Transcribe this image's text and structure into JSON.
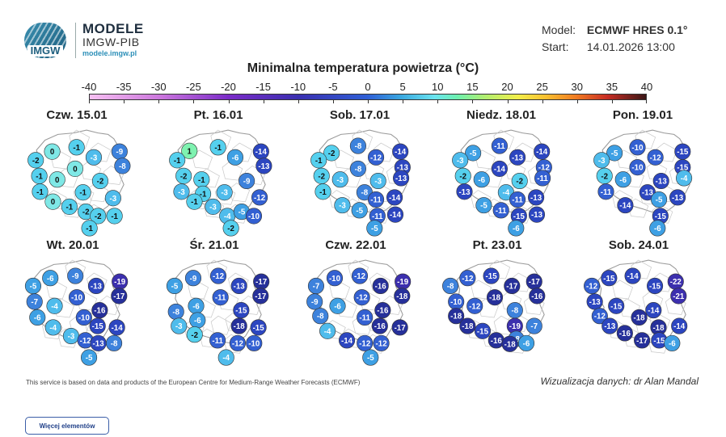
{
  "logo": {
    "badge": "IMGW",
    "title": "MODELE",
    "subtitle": "IMGW-PIB",
    "url": "modele.imgw.pl"
  },
  "meta": {
    "model_label": "Model:",
    "model_value": "ECMWF HRES 0.1°",
    "start_label": "Start:",
    "start_value": "14.01.2026 13:00"
  },
  "title": "Minimalna temperatura powietrza (°C)",
  "scale": {
    "labels": [
      "-40",
      "-35",
      "-30",
      "-25",
      "-20",
      "-15",
      "-10",
      "-5",
      "0",
      "5",
      "10",
      "15",
      "20",
      "25",
      "30",
      "35",
      "40"
    ],
    "min": -40,
    "max": 40
  },
  "panels": [
    {
      "day": "Czw. 15.01",
      "values": [
        0,
        -1,
        -3,
        -9,
        -2,
        -8,
        -1,
        0,
        0,
        -2,
        -1,
        -1,
        -3,
        0,
        -1,
        -2,
        -2,
        -1,
        -1
      ]
    },
    {
      "day": "Pt. 16.01",
      "values": [
        1,
        -1,
        -6,
        -14,
        -1,
        -13,
        -2,
        -1,
        -9,
        -3,
        -1,
        -3,
        -12,
        -1,
        -3,
        -4,
        -5,
        -10,
        -2
      ]
    },
    {
      "day": "Sob. 17.01",
      "values": [
        -2,
        -8,
        -12,
        -14,
        -1,
        -13,
        -2,
        -3,
        -8,
        -3,
        -13,
        -1,
        -8,
        -11,
        -14,
        -3,
        -5,
        -11,
        -14,
        -5
      ]
    },
    {
      "day": "Niedz. 18.01",
      "values": [
        -5,
        -11,
        -13,
        -14,
        -3,
        -12,
        -2,
        -6,
        -14,
        -2,
        -11,
        -13,
        -4,
        -11,
        -13,
        -5,
        -11,
        -15,
        -13,
        -6
      ]
    },
    {
      "day": "Pon. 19.01",
      "values": [
        -5,
        -10,
        -12,
        -15,
        -3,
        -10,
        -15,
        -2,
        -6,
        -13,
        -4,
        -11,
        -13,
        -5,
        -13,
        -14,
        -15,
        -6
      ]
    },
    {
      "day": "Wt. 20.01",
      "values": [
        -6,
        -9,
        -13,
        -19,
        -5,
        -17,
        -7,
        -10,
        -4,
        -16,
        -6,
        -10,
        -15,
        -4,
        -14,
        -3,
        -12,
        -13,
        -8,
        -5
      ]
    },
    {
      "day": "Śr. 21.01",
      "values": [
        -9,
        -12,
        -13,
        -17,
        -5,
        -17,
        -11,
        -6,
        -8,
        -15,
        -6,
        -18,
        -3,
        -15,
        -2,
        -11,
        -12,
        -10,
        -4
      ]
    },
    {
      "day": "Czw. 22.01",
      "values": [
        -10,
        -12,
        -16,
        -19,
        -7,
        -18,
        -9,
        -12,
        -6,
        -16,
        -8,
        -11,
        -16,
        -17,
        -4,
        -14,
        -12,
        -12,
        -5
      ]
    },
    {
      "day": "Pt. 23.01",
      "values": [
        -12,
        -15,
        -17,
        -17,
        -8,
        -16,
        -10,
        -12,
        -18,
        -8,
        -18,
        -19,
        -7,
        -18,
        -8,
        -15,
        -16,
        -18,
        -6
      ]
    },
    {
      "day": "Sob. 24.01",
      "values": [
        -15,
        -14,
        -22,
        -12,
        -15,
        -21,
        -13,
        -15,
        -14,
        -12,
        -18,
        -13,
        -18,
        -14,
        -16,
        -17,
        -15,
        -6
      ]
    }
  ],
  "footnote": "This service is based on data and products of the European Centre for Medium-Range Weather Forecasts (ECMWF)",
  "credit": "Wizualizacja danych: dr Alan Mandal",
  "button": {
    "label": "Więcej elementów"
  }
}
